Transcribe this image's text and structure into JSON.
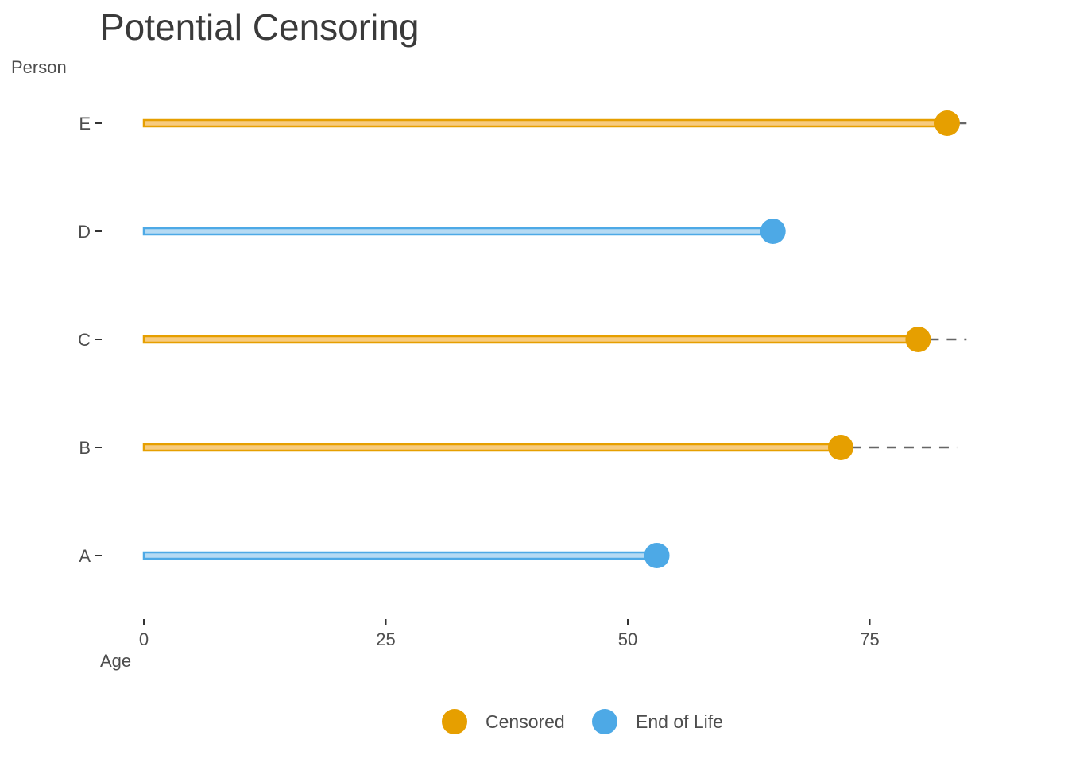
{
  "chart_data": {
    "type": "dot-range",
    "title": "Potential Censoring",
    "xlabel": "Age",
    "ylabel": "Person",
    "xlim": [
      0,
      85
    ],
    "x_ticks": [
      0,
      25,
      50,
      75
    ],
    "x_tick_labels": [
      "0",
      "25",
      "50",
      "75"
    ],
    "grid": false,
    "legend_position": "bottom",
    "legend": [
      {
        "label": "Censored",
        "color": "#E69F00"
      },
      {
        "label": "End of Life",
        "color": "#4DA9E6"
      }
    ],
    "rows": [
      {
        "person": "A",
        "start": 0,
        "end": 53,
        "status": "End of Life",
        "potential_end": null
      },
      {
        "person": "B",
        "start": 0,
        "end": 72,
        "status": "Censored",
        "potential_end": 84
      },
      {
        "person": "C",
        "start": 0,
        "end": 80,
        "status": "Censored",
        "potential_end": 85
      },
      {
        "person": "D",
        "start": 0,
        "end": 65,
        "status": "End of Life",
        "potential_end": null
      },
      {
        "person": "E",
        "start": 0,
        "end": 83,
        "status": "Censored",
        "potential_end": 85
      }
    ],
    "colors": {
      "Censored": {
        "dot": "#E69F00",
        "bar_fill": "#F7CB7F",
        "bar_stroke": "#E69F00"
      },
      "End of Life": {
        "dot": "#4DA9E6",
        "bar_fill": "#B5DAF3",
        "bar_stroke": "#4DA9E6"
      },
      "dashed_line": "#666666"
    }
  }
}
